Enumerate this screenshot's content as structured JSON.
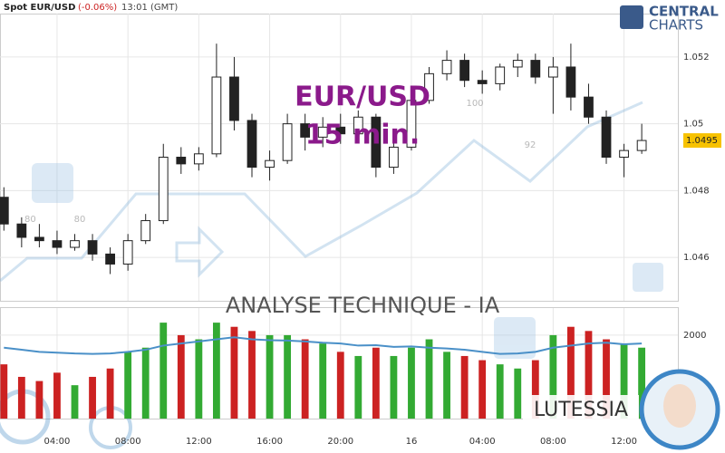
{
  "header": {
    "symbol": "Spot EUR/USD",
    "change": "(-0.06%)",
    "time": "13:01 (GMT)"
  },
  "logo": {
    "line1": "CENTRAL",
    "line2": "CHARTS"
  },
  "watermark": {
    "pair": "EUR/USD",
    "timeframe": "15 min.",
    "analysis": "ANALYSE TECHNIQUE - IA",
    "brand": "LUTESSIA",
    "numbers": [
      "80",
      "80",
      "100",
      "92"
    ]
  },
  "chart_data": [
    {
      "type": "candlestick",
      "x": [
        1,
        2,
        3,
        4,
        5,
        6,
        7,
        8,
        9,
        10,
        11,
        12,
        13,
        14,
        15,
        16,
        17,
        18,
        19,
        20,
        21,
        22,
        23,
        24,
        25,
        26,
        27,
        28,
        29,
        30,
        31,
        32,
        33,
        34,
        35,
        36,
        37
      ],
      "open": [
        1.0478,
        1.047,
        1.0466,
        1.0465,
        1.0463,
        1.0465,
        1.0461,
        1.0458,
        1.0465,
        1.0471,
        1.049,
        1.0488,
        1.0491,
        1.0514,
        1.0501,
        1.0487,
        1.0489,
        1.05,
        1.0496,
        1.0499,
        1.0497,
        1.0502,
        1.0487,
        1.0493,
        1.0507,
        1.0515,
        1.0519,
        1.0513,
        1.0512,
        1.0517,
        1.0519,
        1.0514,
        1.0517,
        1.0508,
        1.0502,
        1.049,
        1.0492
      ],
      "high": [
        1.0481,
        1.0472,
        1.047,
        1.0468,
        1.0467,
        1.0467,
        1.0463,
        1.0467,
        1.0473,
        1.0494,
        1.0493,
        1.0493,
        1.0524,
        1.052,
        1.0503,
        1.0492,
        1.0503,
        1.0503,
        1.0502,
        1.0503,
        1.0504,
        1.0503,
        1.0495,
        1.0509,
        1.0517,
        1.0522,
        1.0521,
        1.0516,
        1.0518,
        1.0521,
        1.0521,
        1.052,
        1.0524,
        1.0512,
        1.0504,
        1.0494,
        1.05
      ],
      "low": [
        1.0468,
        1.0463,
        1.0463,
        1.0461,
        1.0462,
        1.0459,
        1.0455,
        1.0456,
        1.0464,
        1.047,
        1.0485,
        1.0486,
        1.049,
        1.0498,
        1.0484,
        1.0483,
        1.0488,
        1.0492,
        1.0493,
        1.0494,
        1.0495,
        1.0484,
        1.0485,
        1.0492,
        1.0506,
        1.0513,
        1.0511,
        1.0509,
        1.051,
        1.0514,
        1.0512,
        1.0503,
        1.0504,
        1.05,
        1.0488,
        1.0484,
        1.0491
      ],
      "close": [
        1.047,
        1.0466,
        1.0465,
        1.0463,
        1.0465,
        1.0461,
        1.0458,
        1.0465,
        1.0471,
        1.049,
        1.0488,
        1.0491,
        1.0514,
        1.0501,
        1.0487,
        1.0489,
        1.05,
        1.0496,
        1.0499,
        1.0497,
        1.0502,
        1.0487,
        1.0493,
        1.0507,
        1.0515,
        1.0519,
        1.0513,
        1.0512,
        1.0517,
        1.0519,
        1.0514,
        1.0517,
        1.0508,
        1.0502,
        1.049,
        1.0492,
        1.0495
      ],
      "xlim": [
        0.78,
        39.04
      ],
      "ylim": [
        1.0447,
        1.0533
      ],
      "yticks": [
        1.046,
        1.048,
        1.05,
        1.052
      ],
      "last_price": 1.0495,
      "up_color": "#222222",
      "down_color": "#222222",
      "grid": true
    },
    {
      "type": "bar",
      "x": [
        1,
        2,
        3,
        4,
        5,
        6,
        7,
        8,
        9,
        10,
        11,
        12,
        13,
        14,
        15,
        16,
        17,
        18,
        19,
        20,
        21,
        22,
        23,
        24,
        25,
        26,
        27,
        28,
        29,
        30,
        31,
        32,
        33,
        34,
        35,
        36,
        37
      ],
      "values": [
        1300,
        1000,
        900,
        1100,
        800,
        1000,
        1200,
        1600,
        1700,
        2300,
        2000,
        1900,
        2300,
        2200,
        2100,
        2000,
        2000,
        1900,
        1800,
        1600,
        1500,
        1700,
        1500,
        1700,
        1900,
        1600,
        1500,
        1400,
        1300,
        1200,
        1400,
        2000,
        2200,
        2100,
        1900,
        1800,
        1700
      ],
      "average": [
        1700,
        1650,
        1600,
        1580,
        1560,
        1550,
        1560,
        1600,
        1650,
        1750,
        1800,
        1850,
        1900,
        1950,
        1900,
        1880,
        1870,
        1850,
        1820,
        1800,
        1750,
        1760,
        1720,
        1730,
        1700,
        1680,
        1650,
        1600,
        1550,
        1560,
        1600,
        1700,
        1750,
        1800,
        1820,
        1780,
        1800
      ],
      "xlim": [
        0.78,
        39.04
      ],
      "ylim": [
        0,
        2650
      ],
      "yticks": [
        2000
      ],
      "xticks": [
        {
          "value": 4,
          "label": "04:00"
        },
        {
          "value": 8,
          "label": "08:00"
        },
        {
          "value": 12,
          "label": "12:00"
        },
        {
          "value": 16,
          "label": "16:00"
        },
        {
          "value": 20,
          "label": "20:00"
        },
        {
          "value": 24,
          "label": "16"
        },
        {
          "value": 28,
          "label": "04:00"
        },
        {
          "value": 32,
          "label": "08:00"
        },
        {
          "value": 36,
          "label": "12:00"
        }
      ],
      "up_color": "#33aa33",
      "down_color": "#cc2222",
      "line_color": "#4a90c8"
    }
  ]
}
